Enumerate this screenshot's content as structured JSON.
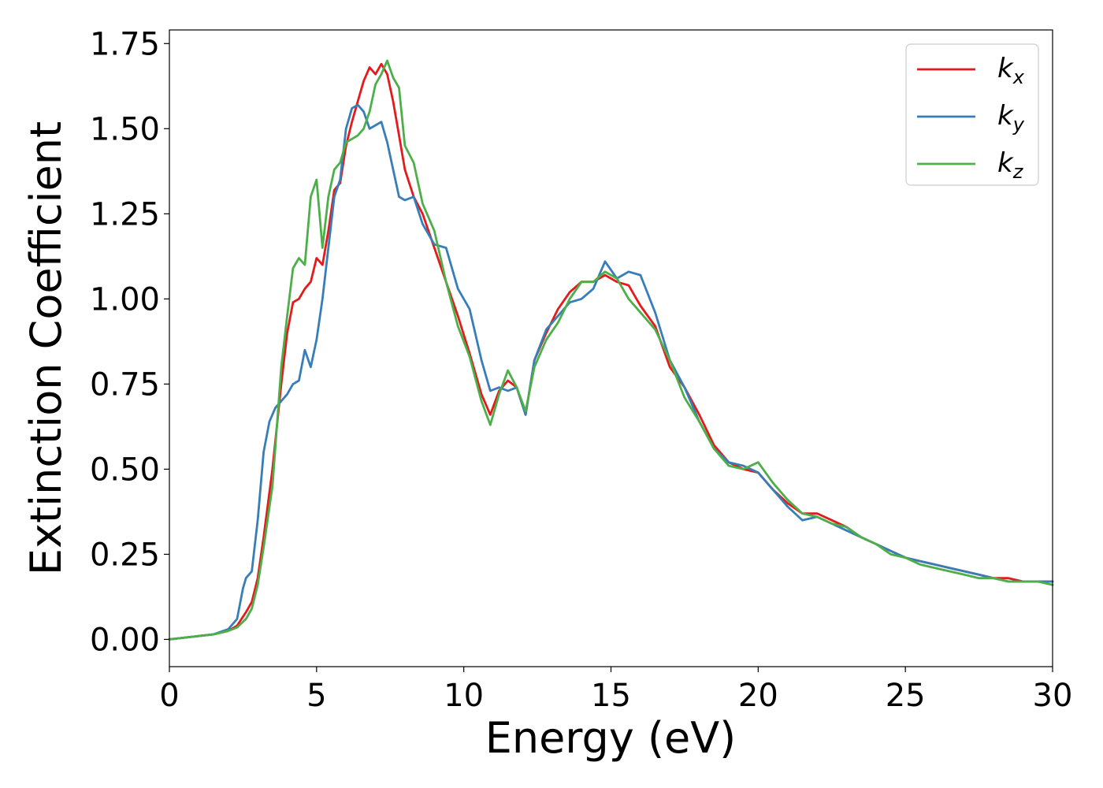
{
  "chart_data": {
    "type": "line",
    "title": "",
    "xlabel": "Energy (eV)",
    "ylabel": "Extinction Coefficient",
    "xlim": [
      0,
      30
    ],
    "ylim": [
      -0.08,
      1.79
    ],
    "xticks": [
      0,
      5,
      10,
      15,
      20,
      25,
      30
    ],
    "xtick_labels": [
      "0",
      "5",
      "10",
      "15",
      "20",
      "25",
      "30"
    ],
    "yticks": [
      0,
      0.25,
      0.5,
      0.75,
      1.0,
      1.25,
      1.5,
      1.75
    ],
    "ytick_labels": [
      "0.00",
      "0.25",
      "0.50",
      "0.75",
      "1.00",
      "1.25",
      "1.50",
      "1.75"
    ],
    "grid": false,
    "legend_position": "top-right",
    "series": [
      {
        "name": "k_x",
        "label_base": "k",
        "label_sub": "x",
        "color": "#e41a1c",
        "x": [
          0,
          1,
          1.5,
          2,
          2.3,
          2.6,
          2.8,
          3.0,
          3.2,
          3.5,
          3.8,
          4.0,
          4.2,
          4.4,
          4.6,
          4.8,
          5.0,
          5.2,
          5.4,
          5.6,
          5.8,
          6.0,
          6.2,
          6.4,
          6.6,
          6.8,
          7.0,
          7.2,
          7.4,
          7.6,
          7.8,
          8.0,
          8.3,
          8.6,
          9.0,
          9.4,
          9.8,
          10.2,
          10.6,
          10.9,
          11.2,
          11.5,
          11.8,
          12.1,
          12.4,
          12.8,
          13.2,
          13.6,
          14.0,
          14.4,
          14.8,
          15.2,
          15.6,
          16.0,
          16.5,
          17.0,
          17.5,
          18.0,
          18.5,
          19.0,
          19.5,
          20.0,
          20.5,
          21.0,
          21.5,
          22.0,
          22.5,
          23.0,
          23.5,
          24.0,
          24.5,
          25.0,
          25.5,
          26.0,
          26.5,
          27.0,
          27.5,
          28.0,
          28.5,
          29.0,
          29.5,
          30.0
        ],
        "y": [
          0,
          0.01,
          0.015,
          0.025,
          0.04,
          0.08,
          0.11,
          0.18,
          0.3,
          0.5,
          0.75,
          0.9,
          0.99,
          1.0,
          1.03,
          1.05,
          1.12,
          1.1,
          1.2,
          1.32,
          1.34,
          1.45,
          1.52,
          1.58,
          1.64,
          1.68,
          1.66,
          1.69,
          1.66,
          1.58,
          1.48,
          1.38,
          1.3,
          1.25,
          1.15,
          1.05,
          0.95,
          0.84,
          0.72,
          0.66,
          0.73,
          0.76,
          0.74,
          0.66,
          0.82,
          0.9,
          0.97,
          1.02,
          1.05,
          1.05,
          1.07,
          1.05,
          1.04,
          0.98,
          0.92,
          0.8,
          0.74,
          0.66,
          0.57,
          0.52,
          0.5,
          0.49,
          0.44,
          0.4,
          0.37,
          0.37,
          0.35,
          0.33,
          0.3,
          0.28,
          0.26,
          0.24,
          0.23,
          0.22,
          0.21,
          0.2,
          0.19,
          0.18,
          0.18,
          0.17,
          0.17,
          0.17
        ]
      },
      {
        "name": "k_y",
        "label_base": "k",
        "label_sub": "y",
        "color": "#377eb8",
        "x": [
          0,
          1,
          1.5,
          2,
          2.3,
          2.5,
          2.6,
          2.8,
          3.0,
          3.2,
          3.4,
          3.6,
          3.8,
          4.0,
          4.2,
          4.4,
          4.6,
          4.8,
          5.0,
          5.2,
          5.4,
          5.6,
          5.8,
          6.0,
          6.2,
          6.4,
          6.6,
          6.8,
          7.0,
          7.2,
          7.4,
          7.6,
          7.8,
          8.0,
          8.3,
          8.6,
          9.0,
          9.4,
          9.8,
          10.2,
          10.6,
          10.9,
          11.2,
          11.5,
          11.8,
          12.1,
          12.4,
          12.8,
          13.2,
          13.6,
          14.0,
          14.4,
          14.8,
          15.2,
          15.6,
          16.0,
          16.5,
          17.0,
          17.5,
          18.0,
          18.5,
          19.0,
          19.5,
          20.0,
          20.5,
          21.0,
          21.5,
          22.0,
          22.5,
          23.0,
          23.5,
          24.0,
          24.5,
          25.0,
          25.5,
          26.0,
          26.5,
          27.0,
          27.5,
          28.0,
          28.5,
          29.0,
          29.5,
          30.0
        ],
        "y": [
          0,
          0.01,
          0.015,
          0.03,
          0.06,
          0.15,
          0.18,
          0.2,
          0.35,
          0.55,
          0.64,
          0.68,
          0.7,
          0.72,
          0.75,
          0.76,
          0.85,
          0.8,
          0.88,
          1.0,
          1.15,
          1.3,
          1.35,
          1.5,
          1.56,
          1.57,
          1.55,
          1.5,
          1.51,
          1.52,
          1.46,
          1.38,
          1.3,
          1.29,
          1.3,
          1.22,
          1.16,
          1.15,
          1.03,
          0.97,
          0.82,
          0.73,
          0.74,
          0.73,
          0.74,
          0.66,
          0.82,
          0.91,
          0.95,
          0.99,
          1.0,
          1.03,
          1.11,
          1.06,
          1.08,
          1.07,
          0.96,
          0.82,
          0.74,
          0.64,
          0.56,
          0.52,
          0.51,
          0.49,
          0.44,
          0.39,
          0.35,
          0.36,
          0.34,
          0.32,
          0.3,
          0.28,
          0.26,
          0.24,
          0.23,
          0.22,
          0.21,
          0.2,
          0.19,
          0.18,
          0.17,
          0.17,
          0.17,
          0.17
        ]
      },
      {
        "name": "k_z",
        "label_base": "k",
        "label_sub": "z",
        "color": "#4daf4a",
        "x": [
          0,
          1,
          1.5,
          2,
          2.3,
          2.6,
          2.8,
          3.0,
          3.2,
          3.5,
          3.8,
          4.0,
          4.2,
          4.4,
          4.6,
          4.8,
          5.0,
          5.2,
          5.4,
          5.6,
          5.8,
          6.0,
          6.2,
          6.4,
          6.6,
          6.8,
          7.0,
          7.2,
          7.4,
          7.6,
          7.8,
          8.0,
          8.3,
          8.6,
          9.0,
          9.4,
          9.8,
          10.2,
          10.6,
          10.9,
          11.2,
          11.5,
          11.8,
          12.1,
          12.4,
          12.8,
          13.2,
          13.6,
          14.0,
          14.4,
          14.8,
          15.2,
          15.6,
          16.0,
          16.5,
          17.0,
          17.5,
          18.0,
          18.5,
          19.0,
          19.5,
          20.0,
          20.5,
          21.0,
          21.5,
          22.0,
          22.5,
          23.0,
          23.5,
          24.0,
          24.5,
          25.0,
          25.5,
          26.0,
          26.5,
          27.0,
          27.5,
          28.0,
          28.5,
          29.0,
          29.5,
          30.0
        ],
        "y": [
          0,
          0.01,
          0.015,
          0.025,
          0.035,
          0.06,
          0.09,
          0.16,
          0.27,
          0.45,
          0.8,
          0.95,
          1.09,
          1.12,
          1.1,
          1.3,
          1.35,
          1.15,
          1.3,
          1.38,
          1.4,
          1.46,
          1.47,
          1.48,
          1.5,
          1.55,
          1.63,
          1.66,
          1.7,
          1.65,
          1.62,
          1.45,
          1.4,
          1.28,
          1.2,
          1.05,
          0.92,
          0.83,
          0.7,
          0.63,
          0.72,
          0.79,
          0.74,
          0.67,
          0.8,
          0.88,
          0.93,
          1.0,
          1.05,
          1.05,
          1.08,
          1.06,
          1.0,
          0.96,
          0.91,
          0.82,
          0.71,
          0.64,
          0.56,
          0.51,
          0.5,
          0.52,
          0.46,
          0.41,
          0.37,
          0.36,
          0.34,
          0.33,
          0.3,
          0.28,
          0.25,
          0.24,
          0.22,
          0.21,
          0.2,
          0.19,
          0.18,
          0.18,
          0.17,
          0.17,
          0.17,
          0.16
        ]
      }
    ]
  }
}
